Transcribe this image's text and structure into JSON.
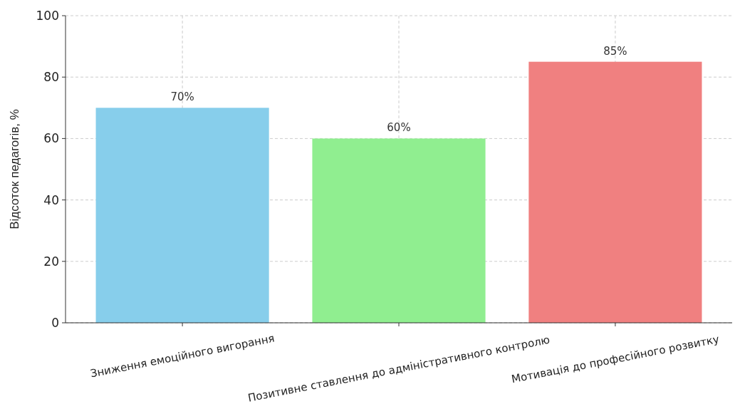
{
  "chart_data": {
    "type": "bar",
    "ylabel": "Відсоток педагогів, %",
    "categories": [
      "Зниження емоційного вигорання",
      "Позитивне ставлення до адміністративного контролю",
      "Мотивація до професійного розвитку"
    ],
    "values": [
      70,
      60,
      85
    ],
    "value_labels": [
      "70%",
      "60%",
      "85%"
    ],
    "colors": [
      "#87ceeb",
      "#90ee90",
      "#f08080"
    ],
    "ylim": [
      0,
      100
    ],
    "yticks": [
      0,
      20,
      40,
      60,
      80,
      100
    ],
    "grid": true
  }
}
